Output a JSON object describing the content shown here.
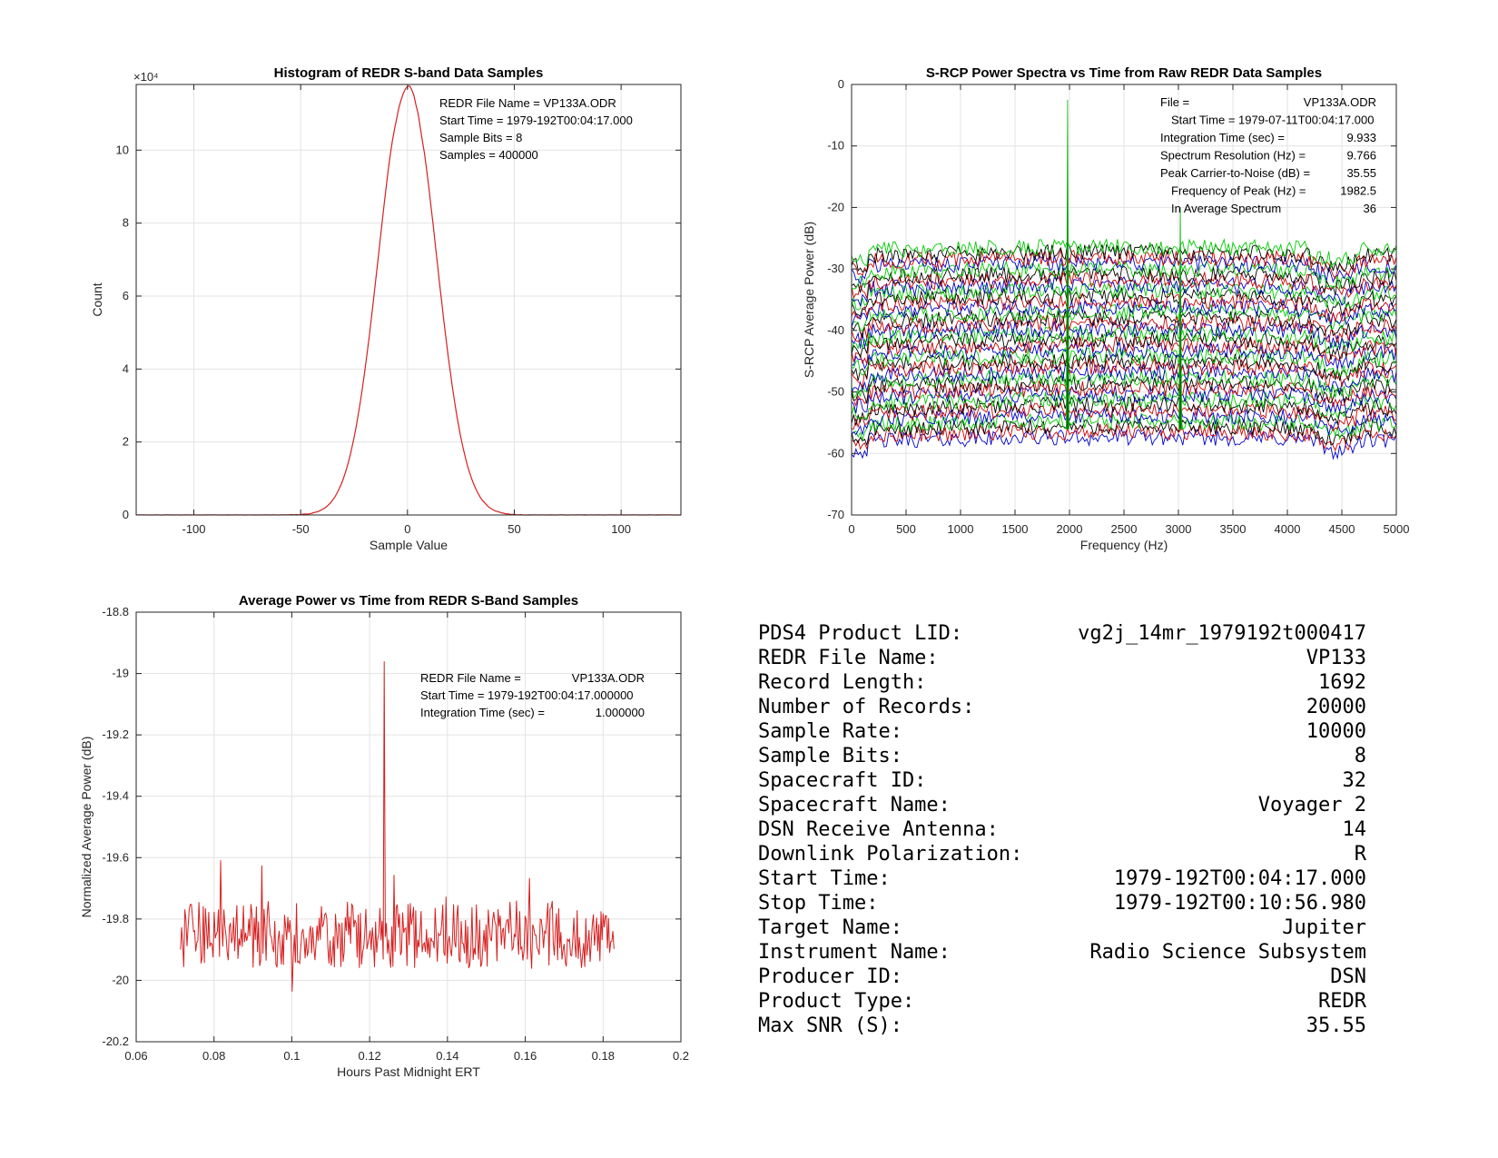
{
  "chart_data": [
    {
      "type": "line",
      "title": "Histogram of REDR S-band Data Samples",
      "xlabel": "Sample Value",
      "ylabel": "Count",
      "y_multiplier": "×10⁴",
      "xlim": [
        -127,
        128
      ],
      "ylim": [
        0,
        118000
      ],
      "xticks": [
        -100,
        -50,
        0,
        50,
        100
      ],
      "yticks": [
        0,
        20000,
        40000,
        60000,
        80000,
        100000
      ],
      "ytick_labels": [
        "0",
        "2",
        "4",
        "6",
        "8",
        "10"
      ],
      "grid": true,
      "series": [
        {
          "color": "#d62020",
          "shape": "gaussian",
          "mean": 0,
          "sigma": 13.5,
          "peak": 118000
        }
      ],
      "annotations": [
        "REDR File Name = VP133A.ODR",
        "Start Time = 1979-192T00:04:17.000",
        "Sample Bits = 8",
        "Samples = 400000"
      ]
    },
    {
      "type": "line",
      "title": "S-RCP Power Spectra vs Time from Raw REDR Data Samples",
      "xlabel": "Frequency (Hz)",
      "ylabel": "S-RCP Average Power (dB)",
      "xlim": [
        0,
        5000
      ],
      "ylim": [
        -70,
        0
      ],
      "xticks": [
        0,
        500,
        1000,
        1500,
        2000,
        2500,
        3000,
        3500,
        4000,
        4500,
        5000
      ],
      "yticks": [
        -70,
        -60,
        -50,
        -40,
        -30,
        -20,
        -10,
        0
      ],
      "grid": true,
      "spectra_count": 36,
      "spectra_top_db": -27,
      "spectra_bottom_db": -58,
      "series_colors": [
        "#00cc00",
        "#000000",
        "#cc0000",
        "#0000cc"
      ],
      "peaks": [
        {
          "frequency_hz": 1982.5,
          "top_db": -2.5,
          "color": "#006600"
        },
        {
          "frequency_hz": 3017.5,
          "top_db": -20,
          "color": "#006600"
        }
      ],
      "annotations": [
        [
          "File =",
          "VP133A.ODR"
        ],
        [
          "Start Time = 1979-07-11T00:04:17.000",
          ""
        ],
        [
          "Integration Time (sec) =",
          "9.933"
        ],
        [
          "Spectrum Resolution (Hz) =",
          "9.766"
        ],
        [
          "Peak Carrier-to-Noise (dB) =",
          "35.55"
        ],
        [
          "Frequency of Peak (Hz) =",
          "1982.5"
        ],
        [
          "In Average Spectrum",
          "36"
        ]
      ]
    },
    {
      "type": "line",
      "title": "Average Power vs Time from REDR S-Band Samples",
      "xlabel": "Hours Past Midnight ERT",
      "ylabel": "Normalized Average Power (dB)",
      "xlim": [
        0.06,
        0.2
      ],
      "ylim": [
        -20.2,
        -18.8
      ],
      "xticks": [
        0.06,
        0.08,
        0.1,
        0.12,
        0.14,
        0.16,
        0.18,
        0.2
      ],
      "yticks": [
        -20.2,
        -20,
        -19.8,
        -19.6,
        -19.4,
        -19.2,
        -19,
        -18.8
      ],
      "grid": true,
      "series": [
        {
          "color": "#d62020",
          "x_start": 0.0714,
          "x_end": 0.1828,
          "mean": -19.85,
          "spike_x": 0.1237,
          "spike_y": -18.96
        }
      ],
      "annotations": [
        [
          "REDR File Name =",
          "VP133A.ODR"
        ],
        [
          "Start Time = 1979-192T00:04:17.000000",
          ""
        ],
        [
          "Integration Time (sec) =",
          "1.000000"
        ]
      ]
    }
  ],
  "metadata_table": [
    [
      "PDS4 Product LID:",
      "vg2j_14mr_1979192t000417"
    ],
    [
      "REDR File Name:",
      "VP133"
    ],
    [
      "Record Length:",
      "1692"
    ],
    [
      "Number of Records:",
      "20000"
    ],
    [
      "Sample Rate:",
      "10000"
    ],
    [
      "Sample Bits:",
      "8"
    ],
    [
      "Spacecraft ID:",
      "32"
    ],
    [
      "Spacecraft Name:",
      "Voyager 2"
    ],
    [
      "DSN Receive Antenna:",
      "14"
    ],
    [
      "Downlink Polarization:",
      "R"
    ],
    [
      "Start Time:",
      "1979-192T00:04:17.000"
    ],
    [
      "Stop Time:",
      "1979-192T00:10:56.980"
    ],
    [
      "Target Name:",
      "Jupiter"
    ],
    [
      "Instrument Name:",
      "Radio Science Subsystem"
    ],
    [
      "Producer ID:",
      "DSN"
    ],
    [
      "Product Type:",
      "REDR"
    ],
    [
      "Max SNR (S):",
      "35.55"
    ]
  ]
}
